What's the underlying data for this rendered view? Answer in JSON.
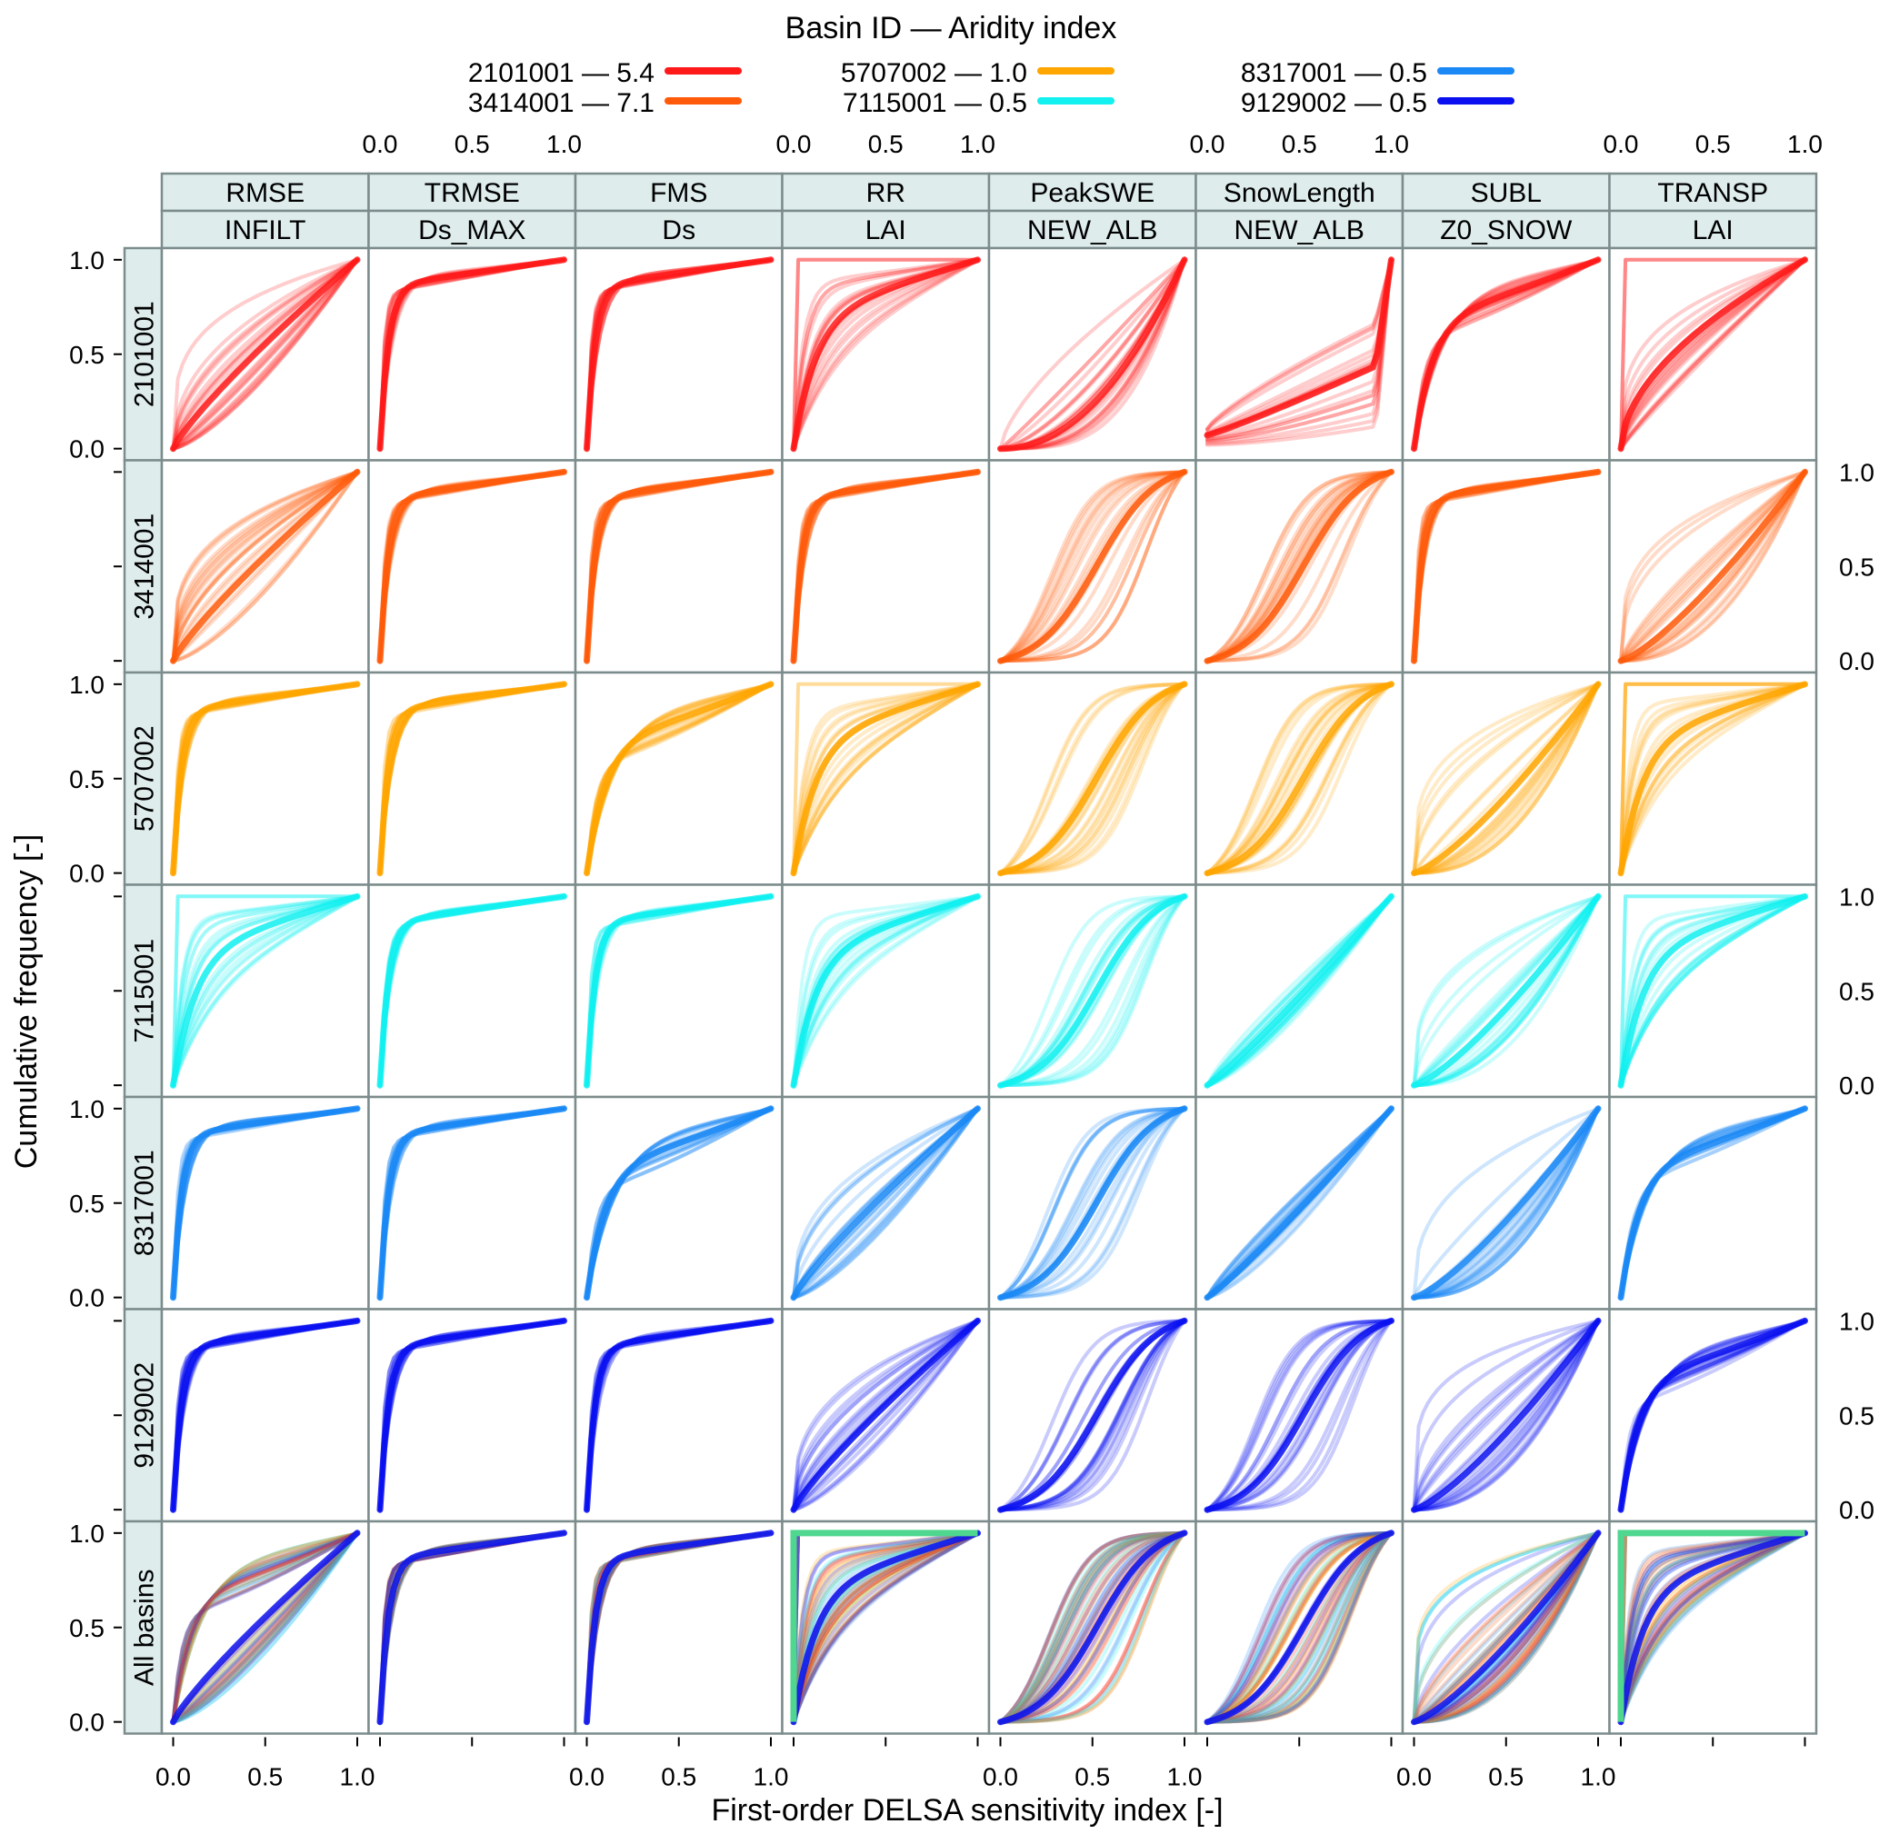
{
  "chart_data": {
    "type": "line",
    "subtype": "faceted empirical CDF (cumulative frequency) curves",
    "xlabel": "First-order DELSA sensitivity index [-]",
    "ylabel": "Cumulative frequency [-]",
    "xlim": [
      0,
      1
    ],
    "ylim": [
      0,
      1
    ],
    "x_ticks": [
      "0.0",
      "0.5",
      "1.0"
    ],
    "y_ticks": [
      "0.0",
      "0.5",
      "1.0"
    ],
    "grid": false,
    "legend": {
      "title": "Basin ID — Aridity index",
      "placement": "top",
      "entries": [
        {
          "basin": "2101001",
          "aridity": "5.4",
          "label": "2101001 — 5.4",
          "color": "#ff1a1a"
        },
        {
          "basin": "3414001",
          "aridity": "7.1",
          "label": "3414001 — 7.1",
          "color": "#ff5a0a"
        },
        {
          "basin": "5707002",
          "aridity": "1.0",
          "label": "5707002 — 1.0",
          "color": "#ffa600"
        },
        {
          "basin": "7115001",
          "aridity": "0.5",
          "label": "7115001 — 0.5",
          "color": "#12f0f0"
        },
        {
          "basin": "8317001",
          "aridity": "0.5",
          "label": "8317001 — 0.5",
          "color": "#1a88f5"
        },
        {
          "basin": "9129002",
          "aridity": "0.5",
          "label": "9129002 — 0.5",
          "color": "#0a10f0"
        }
      ]
    },
    "columns": [
      {
        "metric": "RMSE",
        "parameter": "INFILT"
      },
      {
        "metric": "TRMSE",
        "parameter": "Ds_MAX"
      },
      {
        "metric": "FMS",
        "parameter": "Ds"
      },
      {
        "metric": "RR",
        "parameter": "LAI"
      },
      {
        "metric": "PeakSWE",
        "parameter": "NEW_ALB"
      },
      {
        "metric": "SnowLength",
        "parameter": "NEW_ALB"
      },
      {
        "metric": "SUBL",
        "parameter": "Z0_SNOW"
      },
      {
        "metric": "TRANSP",
        "parameter": "LAI"
      }
    ],
    "rows": [
      "2101001",
      "3414001",
      "5707002",
      "7115001",
      "8317001",
      "9129002",
      "All basins"
    ],
    "all_basins_extra_color": "#4fd68f",
    "panel_shapes_note": "Each panel shows a bundle of many CDF curves; shape summarized by median-curve family",
    "panels": [
      [
        "concave",
        "steep",
        "steep",
        "step",
        "convex",
        "convex-flat",
        "steep-concave",
        "step-concave"
      ],
      [
        "concave",
        "steep",
        "steep",
        "steep",
        "sigmoid",
        "sigmoid",
        "steep",
        "concave-wide"
      ],
      [
        "steep",
        "steep",
        "steep-concave",
        "step",
        "sigmoid",
        "sigmoid",
        "concave-wide",
        "step"
      ],
      [
        "step",
        "steep",
        "steep",
        "step",
        "sigmoid",
        "linear",
        "concave-wide",
        "step"
      ],
      [
        "steep",
        "steep",
        "steep-concave",
        "concave",
        "sigmoid",
        "linear",
        "concave-wide",
        "steep-concave"
      ],
      [
        "steep",
        "steep",
        "steep",
        "concave",
        "sigmoid",
        "sigmoid",
        "concave-wide",
        "steep-concave"
      ],
      [
        "mixed",
        "steep",
        "steep",
        "step",
        "sigmoid",
        "sigmoid",
        "concave-wide",
        "step"
      ]
    ]
  },
  "strip": {
    "bg": "#deecec",
    "border": "#7c8b8b"
  },
  "frame_color": "#7c8b8b"
}
